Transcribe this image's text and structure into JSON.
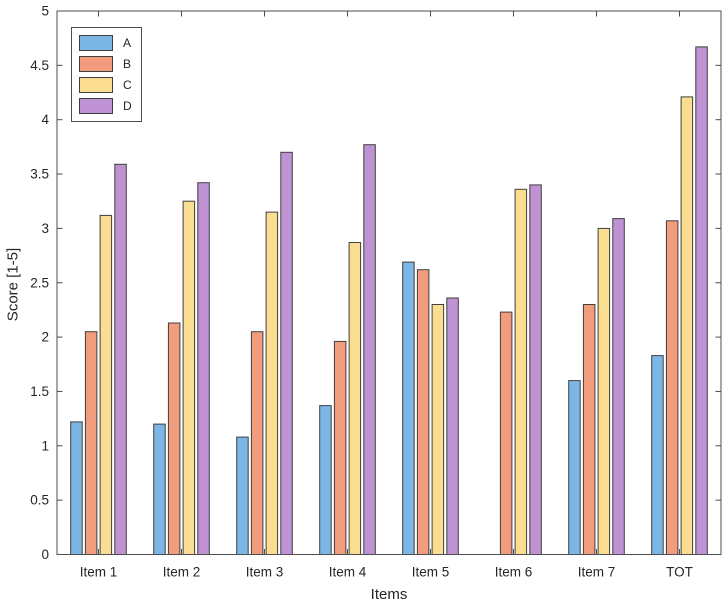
{
  "chart_data": {
    "type": "bar",
    "title": "",
    "xlabel": "Items",
    "ylabel": "Score [1-5]",
    "ylim": [
      0,
      5
    ],
    "y_ticks": [
      "0",
      "0.5",
      "1",
      "1.5",
      "2",
      "2.5",
      "3",
      "3.5",
      "4",
      "4.5",
      "5"
    ],
    "categories": [
      "Item 1",
      "Item 2",
      "Item 3",
      "Item 4",
      "Item 5",
      "Item 6",
      "Item 7",
      "TOT"
    ],
    "series": [
      {
        "name": "A",
        "color": "#7cb6e4",
        "values": [
          1.22,
          1.2,
          1.08,
          1.37,
          2.69,
          0,
          1.6,
          1.83
        ]
      },
      {
        "name": "B",
        "color": "#f29c7e",
        "values": [
          2.05,
          2.13,
          2.05,
          1.96,
          2.62,
          2.23,
          2.3,
          3.07
        ]
      },
      {
        "name": "C",
        "color": "#fbdd92",
        "values": [
          3.12,
          3.25,
          3.15,
          2.87,
          2.3,
          3.36,
          3.0,
          4.21
        ]
      },
      {
        "name": "D",
        "color": "#be92d3",
        "values": [
          3.59,
          3.42,
          3.7,
          3.77,
          2.36,
          3.4,
          3.09,
          4.67
        ]
      }
    ],
    "bar_edge_color": "#3f3f3f",
    "axis_color": "#4d4d4d",
    "tick_label_color": "#262626",
    "grid": false,
    "legend_position": "top-left",
    "box": true,
    "ticks_direction": "in"
  }
}
